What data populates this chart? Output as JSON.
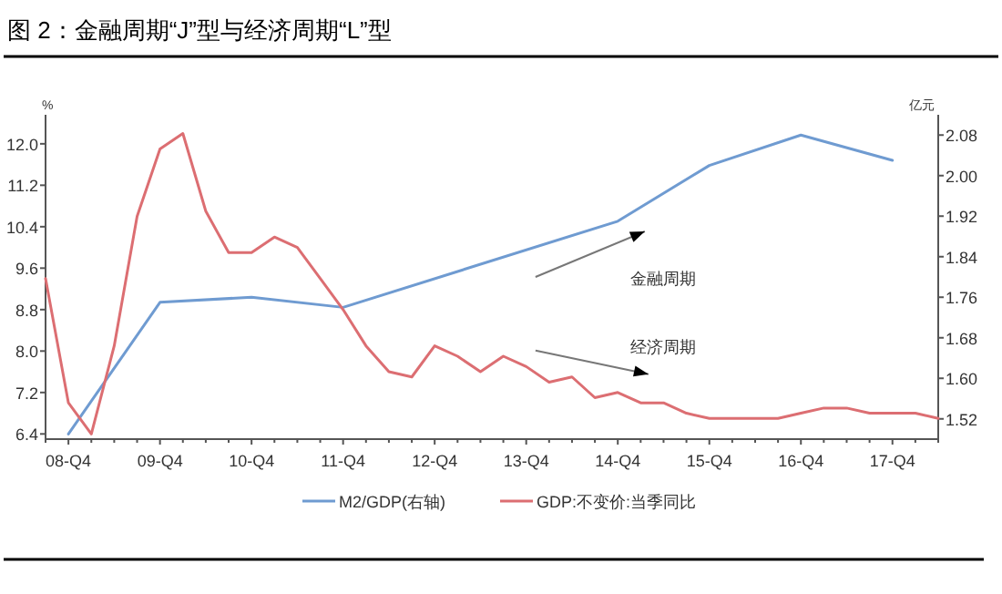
{
  "chart_data": {
    "type": "line",
    "title": "图 2：金融周期“J”型与经济周期“L”型",
    "ylabel": "%",
    "y2label": "亿元",
    "categories": [
      null,
      "08-Q4",
      null,
      null,
      null,
      "09-Q4",
      null,
      null,
      null,
      "10-Q4",
      null,
      null,
      null,
      "11-Q4",
      null,
      null,
      null,
      "12-Q4",
      null,
      null,
      null,
      "13-Q4",
      null,
      null,
      null,
      "14-Q4",
      null,
      null,
      null,
      "15-Q4",
      null,
      null,
      null,
      "16-Q4",
      null,
      null,
      null,
      "17-Q4",
      null,
      null
    ],
    "ylim": [
      6.3,
      12.56
    ],
    "y2lim": [
      1.48,
      2.12
    ],
    "yticks": [
      6.4,
      7.2,
      {
        "value": 8,
        "label": "8.0"
      },
      8.8,
      9.6,
      10.4,
      11.2,
      {
        "value": 12,
        "label": "12.0"
      }
    ],
    "y2ticks": [
      1.52,
      {
        "value": 1.6,
        "label": "1.60"
      },
      1.68,
      1.76,
      1.84,
      1.92,
      {
        "value": 2,
        "label": "2.00"
      },
      2.08
    ],
    "series": [
      {
        "name": "M2/GDP(右轴)",
        "color": "#6f9bd1",
        "axis": "y2",
        "x": [
          "08-Q4",
          "09-Q4",
          "10-Q4",
          "11-Q4",
          "14-Q4",
          "15-Q4",
          "16-Q4",
          "17-Q4"
        ],
        "values": [
          1.49,
          1.75,
          1.76,
          1.74,
          1.91,
          2.02,
          2.08,
          2.03
        ]
      },
      {
        "name": "GDP:不变价:当季同比",
        "color": "#dc6e72",
        "axis": "y",
        "values": [
          9.4,
          7.0,
          6.4,
          8.1,
          10.6,
          11.9,
          12.2,
          10.7,
          9.9,
          9.9,
          10.2,
          10.0,
          9.4,
          8.8,
          8.1,
          7.6,
          7.5,
          8.1,
          7.9,
          7.6,
          7.9,
          7.7,
          7.4,
          7.5,
          7.1,
          7.2,
          7.0,
          7.0,
          6.8,
          6.7,
          6.7,
          6.7,
          6.7,
          6.8,
          6.9,
          6.9,
          6.8,
          6.8,
          6.8,
          6.7
        ]
      }
    ],
    "annotations": [
      "金融周期",
      "经济周期"
    ],
    "legend": "bottom",
    "grid": false,
    "marker": "none",
    "line_style": "solid"
  }
}
